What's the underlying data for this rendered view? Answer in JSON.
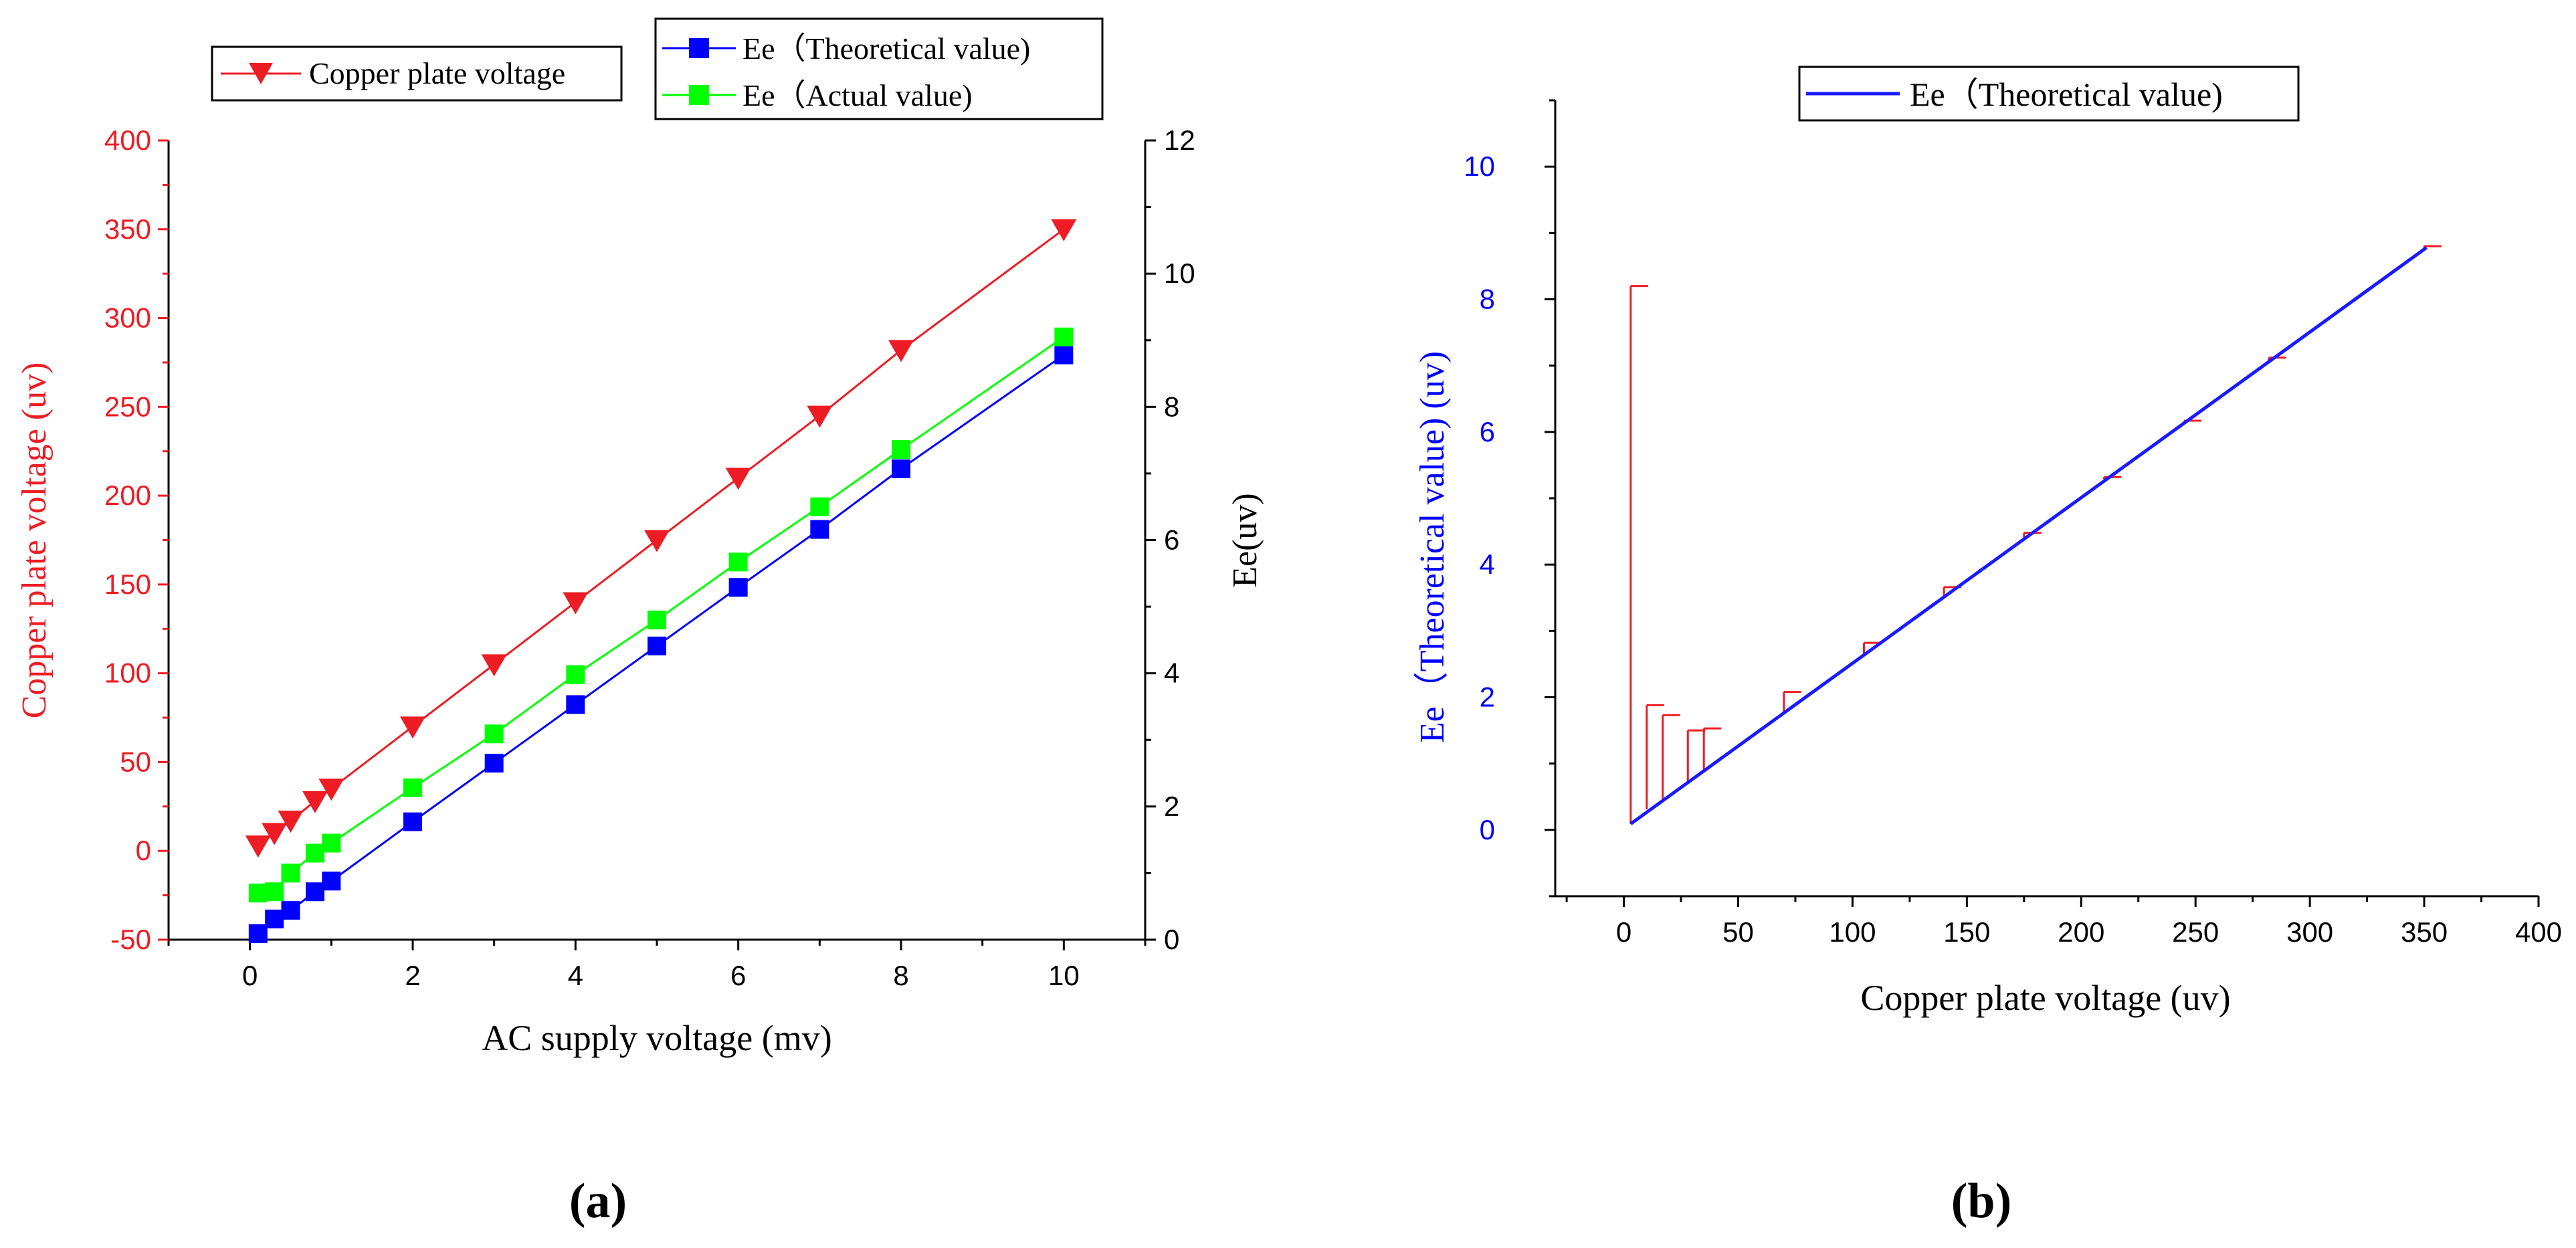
{
  "panel_labels": {
    "a": "(a)",
    "b": "(b)"
  },
  "colors": {
    "red": "#ee1c24",
    "blue": "#0000ff",
    "green": "#00ff00",
    "line_blue": "#1a1aff",
    "axis": "#000000"
  },
  "chart_data": [
    {
      "type": "line",
      "xlabel": "AC supply voltage (mv)",
      "ylabel_left": "Copper plate voltage (uv)",
      "ylabel_right": "Ee(uv)",
      "xlim": [
        -1,
        11
      ],
      "ylim_left": [
        -50,
        400
      ],
      "ylim_right": [
        0,
        12
      ],
      "xticks": [
        "0",
        "2",
        "4",
        "6",
        "8",
        "10"
      ],
      "xtick_values": [
        0,
        2,
        4,
        6,
        8,
        10
      ],
      "yticks_left": [
        "-50",
        "0",
        "50",
        "100",
        "150",
        "200",
        "250",
        "300",
        "350",
        "400"
      ],
      "ytick_left_values": [
        -50,
        0,
        50,
        100,
        150,
        200,
        250,
        300,
        350,
        400
      ],
      "yticks_right": [
        "0",
        "2",
        "4",
        "6",
        "8",
        "10",
        "12"
      ],
      "ytick_right_values": [
        0,
        2,
        4,
        6,
        8,
        10,
        12
      ],
      "grid": false,
      "x": [
        0.1,
        0.3,
        0.5,
        0.8,
        1,
        2,
        3,
        4,
        5,
        6,
        7,
        8,
        10
      ],
      "series": [
        {
          "name": "Copper plate voltage",
          "axis": "left",
          "marker": "triangle-down",
          "color": "red",
          "values": [
            3,
            10,
            17,
            28,
            35,
            70,
            105,
            140,
            175,
            210,
            245,
            282,
            350
          ]
        },
        {
          "name": "Ee（Theoretical value)",
          "axis": "right",
          "marker": "square",
          "color": "blue",
          "values": [
            0.09,
            0.31,
            0.44,
            0.72,
            0.88,
            1.77,
            2.65,
            3.53,
            4.41,
            5.29,
            6.16,
            7.07,
            8.78
          ]
        },
        {
          "name": "Ee（Actual value)",
          "axis": "right",
          "marker": "square",
          "color": "green",
          "values": [
            0.7,
            0.72,
            1.0,
            1.3,
            1.45,
            2.28,
            3.09,
            3.98,
            4.8,
            5.67,
            6.5,
            7.36,
            9.05
          ]
        }
      ],
      "legend_left": "top-left",
      "legend_right": "top-right"
    },
    {
      "type": "line",
      "xlabel": "Copper plate voltage (uv)",
      "ylabel": "Ee（Theoretical value) (uv)",
      "xlim": [
        -30,
        400
      ],
      "ylim": [
        -1,
        11
      ],
      "xticks": [
        "0",
        "50",
        "100",
        "150",
        "200",
        "250",
        "300",
        "350",
        "400"
      ],
      "xtick_values": [
        0,
        50,
        100,
        150,
        200,
        250,
        300,
        350,
        400
      ],
      "yticks": [
        "0",
        "2",
        "4",
        "6",
        "8",
        "10"
      ],
      "ytick_values": [
        0,
        2,
        4,
        6,
        8,
        10
      ],
      "grid": false,
      "series": [
        {
          "name": "Ee（Theoretical value)",
          "color": "line_blue",
          "x": [
            3,
            351
          ],
          "y": [
            0.09,
            8.78
          ]
        }
      ],
      "error_bars": {
        "color": "red",
        "x": [
          3,
          10,
          17,
          28,
          35,
          70,
          105,
          140,
          175,
          210,
          245,
          282,
          350
        ],
        "base": [
          0.09,
          0.31,
          0.44,
          0.72,
          0.88,
          1.77,
          2.65,
          3.53,
          4.41,
          5.29,
          6.16,
          7.07,
          8.78
        ],
        "top": [
          8.2,
          1.88,
          1.73,
          1.5,
          1.53,
          2.08,
          2.82,
          3.66,
          4.48,
          5.32,
          6.17,
          7.12,
          8.8
        ]
      },
      "legend": "top-center"
    }
  ]
}
